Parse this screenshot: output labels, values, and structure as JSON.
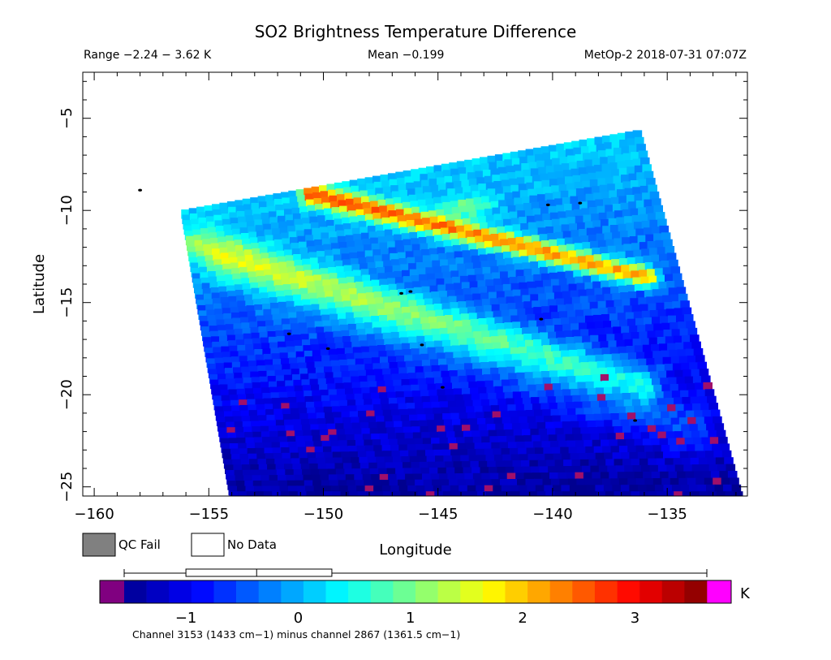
{
  "chart_data": {
    "type": "heatmap",
    "title": "SO2 Brightness Temperature Difference",
    "header": {
      "range": "Range −2.24 − 3.62 K",
      "mean": "Mean −0.199",
      "satellite": "MetOp-2 2018-07-31 07:07Z"
    },
    "xlabel": "Longitude",
    "ylabel": "Latitude",
    "xlim": [
      -160.5,
      -131.5
    ],
    "ylim": [
      -25.5,
      -2.5
    ],
    "x_ticks": [
      -160,
      -155,
      -150,
      -145,
      -140,
      -135
    ],
    "y_ticks": [
      -5,
      -10,
      -15,
      -20,
      -25
    ],
    "x_tick_labels": [
      "−160",
      "−155",
      "−150",
      "−145",
      "−140",
      "−135"
    ],
    "y_tick_labels": [
      "−5",
      "−10",
      "−15",
      "−20",
      "−25"
    ],
    "swath_corners": {
      "top_left": [
        -156.0,
        -10.2
      ],
      "top_right": [
        -136.3,
        -5.9
      ],
      "bottom_right": [
        -131.9,
        -25.5
      ],
      "bottom_left": [
        -153.9,
        -25.5
      ]
    },
    "features": [
      {
        "name": "upper SO2 band",
        "from": [
          -150.5,
          -9.2
        ],
        "to": [
          -135.8,
          -13.7
        ],
        "peak": [
          -143.7,
          -9.9
        ],
        "peak_value": 3.3,
        "value": 2.3
      },
      {
        "name": "secondary band",
        "from": [
          -155.5,
          -12.0
        ],
        "to": [
          -136.0,
          -19.5
        ],
        "value": 1.2
      },
      {
        "name": "tertiary band",
        "from": [
          -154.0,
          -13.0
        ],
        "to": [
          -134.0,
          -22.0
        ],
        "value": 0.6
      }
    ],
    "legend": {
      "qc_fail": "QC Fail",
      "no_data": "No Data",
      "qc_fail_color": "#808080",
      "no_data_color": "#ffffff"
    },
    "colorbar": {
      "unit": "K",
      "min": -1.55,
      "max": 3.64,
      "ticks": [
        -1,
        0,
        1,
        2,
        3
      ],
      "tick_labels": [
        "−1",
        "0",
        "1",
        "2",
        "3"
      ],
      "under_color": "#800080",
      "over_color": "#ff00ff",
      "colors": [
        "#00008f",
        "#0000ff",
        "#0080ff",
        "#00ffff",
        "#80ff80",
        "#ffff00",
        "#ff8000",
        "#ff0000",
        "#800000"
      ],
      "box_whisker": {
        "whisker": [
          -1.55,
          3.64
        ],
        "box": [
          -1.0,
          0.3
        ],
        "median": -0.37
      }
    },
    "caption": "Channel 3153 (1433 cm−1) minus channel 2867 (1361.5 cm−1)"
  }
}
